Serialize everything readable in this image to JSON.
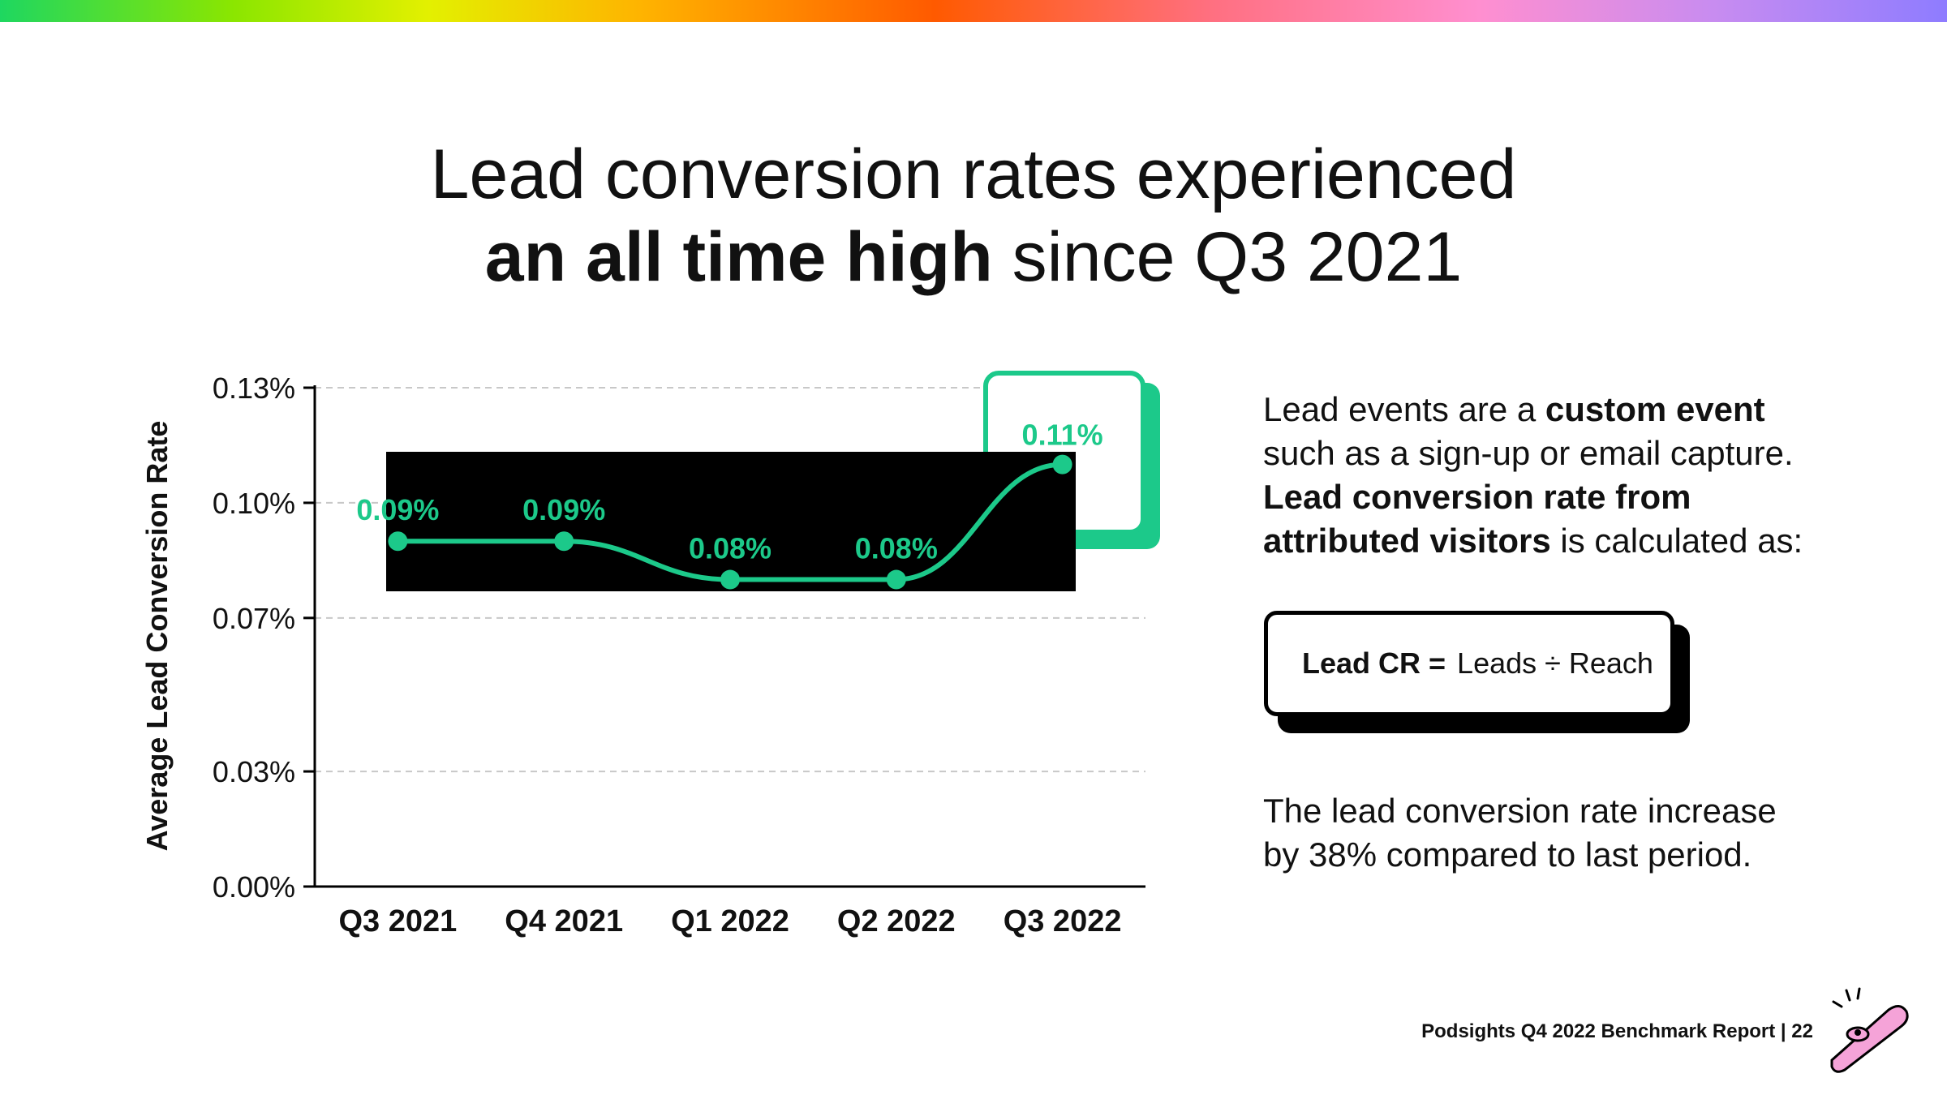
{
  "slide": {
    "title_line1": "Lead conversion rates experienced",
    "title_line2_bold": "an all time high",
    "title_line2_rest": " since Q3 2021",
    "desc_part1": "Lead events are a ",
    "desc_bold1": "custom event",
    "desc_part2": "such as a sign-up or email capture.",
    "desc_bold2a": "Lead conversion rate from",
    "desc_bold2b": "attributed visitors",
    "desc_part3": " is calculated as:",
    "formula_label": "Lead CR =",
    "formula_expr": "Leads ÷ Reach",
    "increase_line1": "The lead conversion rate increase",
    "increase_line2": "by 38% compared to last period.",
    "footer": "Podsights Q4 2022 Benchmark Report | 22"
  },
  "chart_data": {
    "type": "line",
    "ylabel": "Average Lead Conversion Rate",
    "xlabel": "",
    "categories": [
      "Q3 2021",
      "Q4 2021",
      "Q1 2022",
      "Q2 2022",
      "Q3 2022"
    ],
    "series": [
      {
        "values": [
          0.09,
          0.09,
          0.08,
          0.08,
          0.11
        ],
        "data_labels": [
          "0.09%",
          "0.09%",
          "0.08%",
          "0.08%",
          "0.11%"
        ]
      }
    ],
    "yticks": [
      0.0,
      0.03,
      0.07,
      0.1,
      0.13
    ],
    "ytick_labels": [
      "0.00%",
      "0.03%",
      "0.07%",
      "0.10%",
      "0.13%"
    ],
    "ylim": [
      0,
      0.13
    ],
    "grid": true,
    "highlight_last": true,
    "line_color": "#1cc98a"
  }
}
